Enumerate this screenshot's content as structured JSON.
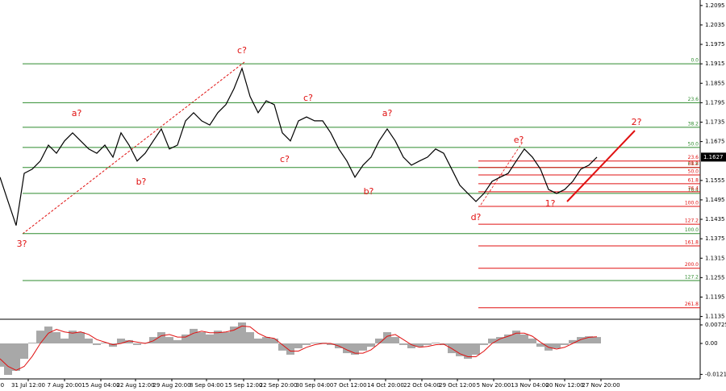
{
  "chart_data": {
    "type": "line",
    "x": [
      0,
      1,
      2,
      3,
      4,
      5,
      6,
      7,
      8,
      9,
      10,
      11,
      12,
      13,
      14,
      15,
      16,
      17,
      18,
      19,
      20,
      21,
      22,
      23,
      24,
      25,
      26,
      27,
      28,
      29,
      30,
      31,
      32,
      33,
      34,
      35,
      36,
      37,
      38,
      39,
      40,
      41,
      42,
      43,
      44,
      45,
      46,
      47,
      48,
      49,
      50,
      51,
      52,
      53,
      54,
      55,
      56,
      57,
      58,
      59,
      60,
      61,
      62,
      63,
      64,
      65,
      66,
      67,
      68,
      69,
      70,
      71,
      72,
      73,
      74
    ],
    "xlim": [
      0,
      86.8
    ],
    "xticks": [
      {
        "value": -0.5,
        "label": "20:00"
      },
      {
        "value": 3.5,
        "label": "31 Jul 12:00"
      },
      {
        "value": 8.0,
        "label": "7 Aug 20:00"
      },
      {
        "value": 12.5,
        "label": "15 Aug 04:00"
      },
      {
        "value": 16.8,
        "label": "22 Aug 12:00"
      },
      {
        "value": 21.3,
        "label": "29 Aug 20:00"
      },
      {
        "value": 25.6,
        "label": "8 Sep 04:00"
      },
      {
        "value": 30.2,
        "label": "15 Sep 12:00"
      },
      {
        "value": 34.5,
        "label": "22 Sep 20:00"
      },
      {
        "value": 39.0,
        "label": "30 Sep 04:00"
      },
      {
        "value": 43.4,
        "label": "7 Oct 12:00"
      },
      {
        "value": 47.8,
        "label": "14 Oct 20:00"
      },
      {
        "value": 52.3,
        "label": "22 Oct 04:00"
      },
      {
        "value": 56.7,
        "label": "29 Oct 12:00"
      },
      {
        "value": 61.2,
        "label": "5 Nov 20:00"
      },
      {
        "value": 65.7,
        "label": "13 Nov 04:00"
      },
      {
        "value": 70.0,
        "label": "20 Nov 12:00"
      },
      {
        "value": 74.5,
        "label": "27 Nov 20:00"
      }
    ],
    "series": [
      {
        "color": "#000000",
        "values": [
          1.1565,
          1.149,
          1.1416,
          1.1577,
          1.159,
          1.1615,
          1.1664,
          1.1639,
          1.1677,
          1.1702,
          1.1677,
          1.1652,
          1.1639,
          1.1664,
          1.1627,
          1.1702,
          1.1664,
          1.1615,
          1.1639,
          1.1677,
          1.1714,
          1.1652,
          1.1664,
          1.1739,
          1.1764,
          1.1739,
          1.1726,
          1.1764,
          1.1789,
          1.1838,
          1.1901,
          1.1814,
          1.1764,
          1.1801,
          1.1789,
          1.1702,
          1.1677,
          1.1739,
          1.1751,
          1.1739,
          1.1739,
          1.1702,
          1.1652,
          1.1615,
          1.1565,
          1.1602,
          1.1627,
          1.1677,
          1.1714,
          1.1677,
          1.1627,
          1.1602,
          1.1615,
          1.1627,
          1.1652,
          1.1639,
          1.159,
          1.154,
          1.1515,
          1.149,
          1.1515,
          1.1552,
          1.1565,
          1.1577,
          1.1615,
          1.1652,
          1.1627,
          1.159,
          1.1527,
          1.1515,
          1.1527,
          1.1552,
          1.159,
          1.1602,
          1.1627
        ]
      }
    ],
    "ylim": [
      1.1129,
      1.2112
    ],
    "yticks": [
      1.2095,
      1.2035,
      1.1975,
      1.1915,
      1.1855,
      1.1795,
      1.1735,
      1.1675,
      1.1555,
      1.1495,
      1.1435,
      1.1375,
      1.1315,
      1.1255,
      1.1195,
      1.1135
    ],
    "current_price": 1.1627,
    "fib_green": {
      "color": "#2e8b2e",
      "levels": [
        {
          "price": 1.1915,
          "label": "0.0"
        },
        {
          "price": 1.1795,
          "label": "23.6"
        },
        {
          "price": 1.1719,
          "label": "38.2"
        },
        {
          "price": 1.1657,
          "label": "50.0"
        },
        {
          "price": 1.1595,
          "label": "61.8"
        },
        {
          "price": 1.1515,
          "label": "76.4"
        },
        {
          "price": 1.1391,
          "label": "100.0"
        },
        {
          "price": 1.1246,
          "label": "127.2"
        }
      ]
    },
    "fib_red": {
      "color": "#e01010",
      "levels": [
        {
          "price": 1.1615,
          "label": "23.6"
        },
        {
          "price": 1.1595,
          "label": "38.2"
        },
        {
          "price": 1.1572,
          "label": "50.0"
        },
        {
          "price": 1.1545,
          "label": "61.8"
        },
        {
          "price": 1.152,
          "label": "76.4"
        },
        {
          "price": 1.1475,
          "label": "100.0"
        },
        {
          "price": 1.142,
          "label": "127.2"
        },
        {
          "price": 1.1353,
          "label": "161.8"
        },
        {
          "price": 1.1284,
          "label": "200.0"
        },
        {
          "price": 1.1162,
          "label": "261.8"
        }
      ]
    },
    "wave_labels": [
      "c?",
      "a?",
      "b?",
      "c?",
      "a?",
      "b?",
      "d?",
      "c?",
      "e?",
      "1?",
      "2?",
      "3?"
    ],
    "oscillator": {
      "histogram": {
        "color": "#a8a8a8",
        "values": [
          -0.0091,
          -0.0123,
          -0.0107,
          -0.006,
          0.0003,
          0.005,
          0.0066,
          0.0044,
          0.0019,
          0.005,
          0.0044,
          0.0019,
          -0.0006,
          0.0003,
          -0.0013,
          0.0019,
          0.0013,
          -0.0006,
          0.0003,
          0.0025,
          0.0044,
          0.0025,
          0.0013,
          0.0035,
          0.0057,
          0.0044,
          0.0035,
          0.005,
          0.0044,
          0.0066,
          0.0082,
          0.0044,
          0.0019,
          0.0025,
          0.0019,
          -0.0028,
          -0.0044,
          -0.0019,
          -0.0006,
          0.0003,
          0.0003,
          -0.0006,
          -0.0019,
          -0.0038,
          -0.0044,
          -0.0028,
          -0.0013,
          0.0019,
          0.0044,
          0.0025,
          -0.0006,
          -0.0019,
          -0.0013,
          -0.0006,
          0.0003,
          -0.0006,
          -0.0038,
          -0.005,
          -0.006,
          -0.0044,
          -0.0006,
          0.0019,
          0.0025,
          0.0035,
          0.005,
          0.0035,
          0.0019,
          -0.0013,
          -0.0028,
          -0.0019,
          -0.0006,
          0.0013,
          0.0025,
          0.0028,
          0.0025
        ]
      },
      "signal": {
        "color": "#e01010",
        "values": [
          -0.006,
          -0.009,
          -0.0105,
          -0.009,
          -0.005,
          0,
          0.004,
          0.0055,
          0.0045,
          0.004,
          0.0045,
          0.0035,
          0.0015,
          0.0005,
          -0.0005,
          0,
          0.001,
          0.0005,
          0,
          0.001,
          0.003,
          0.0035,
          0.0025,
          0.0025,
          0.004,
          0.0048,
          0.0042,
          0.0042,
          0.0045,
          0.0052,
          0.0068,
          0.0065,
          0.004,
          0.0025,
          0.002,
          -0.0005,
          -0.003,
          -0.003,
          -0.0015,
          -0.0005,
          0,
          0,
          -0.001,
          -0.0025,
          -0.0038,
          -0.0038,
          -0.0025,
          0,
          0.0028,
          0.0035,
          0.0015,
          -0.0005,
          -0.0015,
          -0.0012,
          -0.0005,
          -0.0003,
          -0.002,
          -0.004,
          -0.0052,
          -0.0052,
          -0.003,
          0,
          0.0018,
          0.0028,
          0.004,
          0.004,
          0.0028,
          0.0005,
          -0.0015,
          -0.0022,
          -0.0015,
          0,
          0.0015,
          0.0024,
          0.0026
        ]
      },
      "ylim": [
        -0.01387,
        0.00914
      ],
      "yticks": [
        0.00725,
        {
          "value": 0,
          "label": "0.00"
        },
        -0.0121
      ]
    }
  }
}
